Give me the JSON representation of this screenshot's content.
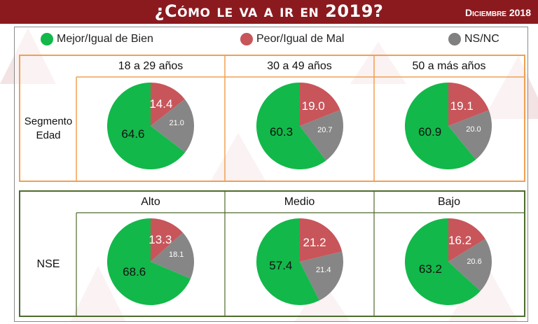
{
  "header": {
    "title": "¿Cómo le va a ir en 2019?",
    "date": "Diciembre 2018"
  },
  "legend": [
    {
      "label": "Mejor/Igual de Bien",
      "color": "#1db954"
    },
    {
      "label": "Peor/Igual de Mal",
      "color": "#c8555a"
    },
    {
      "label": "NS/NC",
      "color": "#7f7f7f"
    }
  ],
  "colors": {
    "green": "#12b84a",
    "red": "#c8555a",
    "gray": "#868686",
    "age_border": "#f0a050",
    "nse_border": "#4e6b2c",
    "header_bg": "#8b1a1f"
  },
  "sections": [
    {
      "label": "Segmento Edad",
      "groups": [
        "18 a 29 años",
        "30 a 49 años",
        "50 a más años"
      ]
    },
    {
      "label": "NSE",
      "groups": [
        "Alto",
        "Medio",
        "Bajo"
      ]
    }
  ],
  "chart_data": [
    {
      "type": "pie",
      "title": "18 a 29 años",
      "labels": [
        "Mejor/Igual de Bien",
        "Peor/Igual de Mal",
        "NS/NC"
      ],
      "values": [
        64.6,
        14.4,
        21.0
      ]
    },
    {
      "type": "pie",
      "title": "30 a 49 años",
      "labels": [
        "Mejor/Igual de Bien",
        "Peor/Igual de Mal",
        "NS/NC"
      ],
      "values": [
        60.3,
        19.0,
        20.7
      ]
    },
    {
      "type": "pie",
      "title": "50 a más años",
      "labels": [
        "Mejor/Igual de Bien",
        "Peor/Igual de Mal",
        "NS/NC"
      ],
      "values": [
        60.9,
        19.1,
        20.0
      ]
    },
    {
      "type": "pie",
      "title": "Alto",
      "labels": [
        "Mejor/Igual de Bien",
        "Peor/Igual de Mal",
        "NS/NC"
      ],
      "values": [
        68.6,
        13.3,
        18.1
      ]
    },
    {
      "type": "pie",
      "title": "Medio",
      "labels": [
        "Mejor/Igual de Bien",
        "Peor/Igual de Mal",
        "NS/NC"
      ],
      "values": [
        57.4,
        21.2,
        21.4
      ]
    },
    {
      "type": "pie",
      "title": "Bajo",
      "labels": [
        "Mejor/Igual de Bien",
        "Peor/Igual de Mal",
        "NS/NC"
      ],
      "values": [
        63.2,
        16.2,
        20.6
      ]
    }
  ],
  "value_labels": [
    [
      "64.6",
      "14.4",
      "21.0"
    ],
    [
      "60.3",
      "19.0",
      "20.7"
    ],
    [
      "60.9",
      "19.1",
      "20.0"
    ],
    [
      "68.6",
      "13.3",
      "18.1"
    ],
    [
      "57.4",
      "21.2",
      "21.4"
    ],
    [
      "63.2",
      "16.2",
      "20.6"
    ]
  ]
}
